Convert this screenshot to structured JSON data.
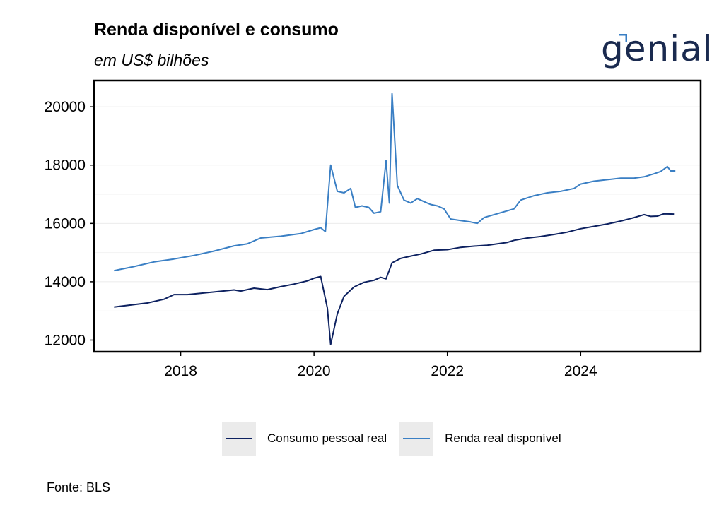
{
  "header": {
    "title": "Renda disponível e consumo",
    "subtitle": "em US$ bilhões",
    "logo_text": "genial"
  },
  "footer": {
    "source": "Fonte: BLS"
  },
  "colors": {
    "consumo": "#0d2160",
    "renda": "#3a7fc4",
    "grid": "#ebebeb",
    "legend_key_bg": "#ebebeb"
  },
  "chart_data": {
    "type": "line",
    "title": "Renda disponível e consumo",
    "subtitle": "em US$ bilhões",
    "xlabel": "",
    "ylabel": "",
    "xlim": [
      2016.7,
      2025.8
    ],
    "ylim": [
      11600,
      20900
    ],
    "x_ticks": [
      2018,
      2020,
      2022,
      2024
    ],
    "y_ticks": [
      12000,
      14000,
      16000,
      18000,
      20000
    ],
    "grid": "horizontal",
    "legend_position": "bottom",
    "series": [
      {
        "name": "Consumo pessoal real",
        "color": "#0d2160",
        "points": [
          [
            2017.0,
            13130
          ],
          [
            2017.25,
            13200
          ],
          [
            2017.5,
            13270
          ],
          [
            2017.75,
            13400
          ],
          [
            2017.9,
            13560
          ],
          [
            2018.1,
            13560
          ],
          [
            2018.5,
            13650
          ],
          [
            2018.8,
            13720
          ],
          [
            2018.9,
            13680
          ],
          [
            2019.1,
            13780
          ],
          [
            2019.3,
            13730
          ],
          [
            2019.5,
            13830
          ],
          [
            2019.7,
            13920
          ],
          [
            2019.9,
            14030
          ],
          [
            2020.0,
            14120
          ],
          [
            2020.1,
            14180
          ],
          [
            2020.2,
            13100
          ],
          [
            2020.25,
            11850
          ],
          [
            2020.35,
            12900
          ],
          [
            2020.45,
            13500
          ],
          [
            2020.6,
            13820
          ],
          [
            2020.75,
            13980
          ],
          [
            2020.9,
            14050
          ],
          [
            2021.0,
            14150
          ],
          [
            2021.08,
            14100
          ],
          [
            2021.17,
            14650
          ],
          [
            2021.3,
            14800
          ],
          [
            2021.45,
            14880
          ],
          [
            2021.6,
            14950
          ],
          [
            2021.8,
            15080
          ],
          [
            2022.0,
            15100
          ],
          [
            2022.2,
            15180
          ],
          [
            2022.4,
            15220
          ],
          [
            2022.6,
            15250
          ],
          [
            2022.75,
            15300
          ],
          [
            2022.9,
            15350
          ],
          [
            2023.0,
            15420
          ],
          [
            2023.2,
            15500
          ],
          [
            2023.4,
            15550
          ],
          [
            2023.6,
            15620
          ],
          [
            2023.8,
            15700
          ],
          [
            2024.0,
            15820
          ],
          [
            2024.2,
            15900
          ],
          [
            2024.4,
            15980
          ],
          [
            2024.6,
            16080
          ],
          [
            2024.8,
            16200
          ],
          [
            2024.95,
            16300
          ],
          [
            2025.05,
            16240
          ],
          [
            2025.15,
            16250
          ],
          [
            2025.25,
            16330
          ],
          [
            2025.4,
            16320
          ]
        ]
      },
      {
        "name": "Renda real disponível",
        "color": "#3a7fc4",
        "points": [
          [
            2017.0,
            14380
          ],
          [
            2017.3,
            14520
          ],
          [
            2017.6,
            14680
          ],
          [
            2017.9,
            14780
          ],
          [
            2018.2,
            14900
          ],
          [
            2018.5,
            15050
          ],
          [
            2018.8,
            15230
          ],
          [
            2019.0,
            15300
          ],
          [
            2019.2,
            15500
          ],
          [
            2019.5,
            15560
          ],
          [
            2019.8,
            15650
          ],
          [
            2020.0,
            15790
          ],
          [
            2020.1,
            15850
          ],
          [
            2020.17,
            15720
          ],
          [
            2020.25,
            18000
          ],
          [
            2020.35,
            17100
          ],
          [
            2020.45,
            17050
          ],
          [
            2020.55,
            17200
          ],
          [
            2020.62,
            16550
          ],
          [
            2020.72,
            16600
          ],
          [
            2020.82,
            16550
          ],
          [
            2020.9,
            16350
          ],
          [
            2021.0,
            16400
          ],
          [
            2021.08,
            18150
          ],
          [
            2021.13,
            16700
          ],
          [
            2021.17,
            20450
          ],
          [
            2021.25,
            17300
          ],
          [
            2021.35,
            16800
          ],
          [
            2021.45,
            16700
          ],
          [
            2021.55,
            16850
          ],
          [
            2021.65,
            16750
          ],
          [
            2021.75,
            16650
          ],
          [
            2021.85,
            16600
          ],
          [
            2021.95,
            16500
          ],
          [
            2022.05,
            16150
          ],
          [
            2022.2,
            16100
          ],
          [
            2022.35,
            16050
          ],
          [
            2022.45,
            16000
          ],
          [
            2022.55,
            16200
          ],
          [
            2022.7,
            16300
          ],
          [
            2022.85,
            16400
          ],
          [
            2023.0,
            16500
          ],
          [
            2023.1,
            16800
          ],
          [
            2023.3,
            16950
          ],
          [
            2023.5,
            17050
          ],
          [
            2023.7,
            17100
          ],
          [
            2023.9,
            17200
          ],
          [
            2024.0,
            17350
          ],
          [
            2024.2,
            17450
          ],
          [
            2024.4,
            17500
          ],
          [
            2024.6,
            17550
          ],
          [
            2024.8,
            17550
          ],
          [
            2024.95,
            17600
          ],
          [
            2025.1,
            17700
          ],
          [
            2025.2,
            17780
          ],
          [
            2025.3,
            17950
          ],
          [
            2025.35,
            17800
          ],
          [
            2025.42,
            17800
          ]
        ]
      }
    ]
  }
}
